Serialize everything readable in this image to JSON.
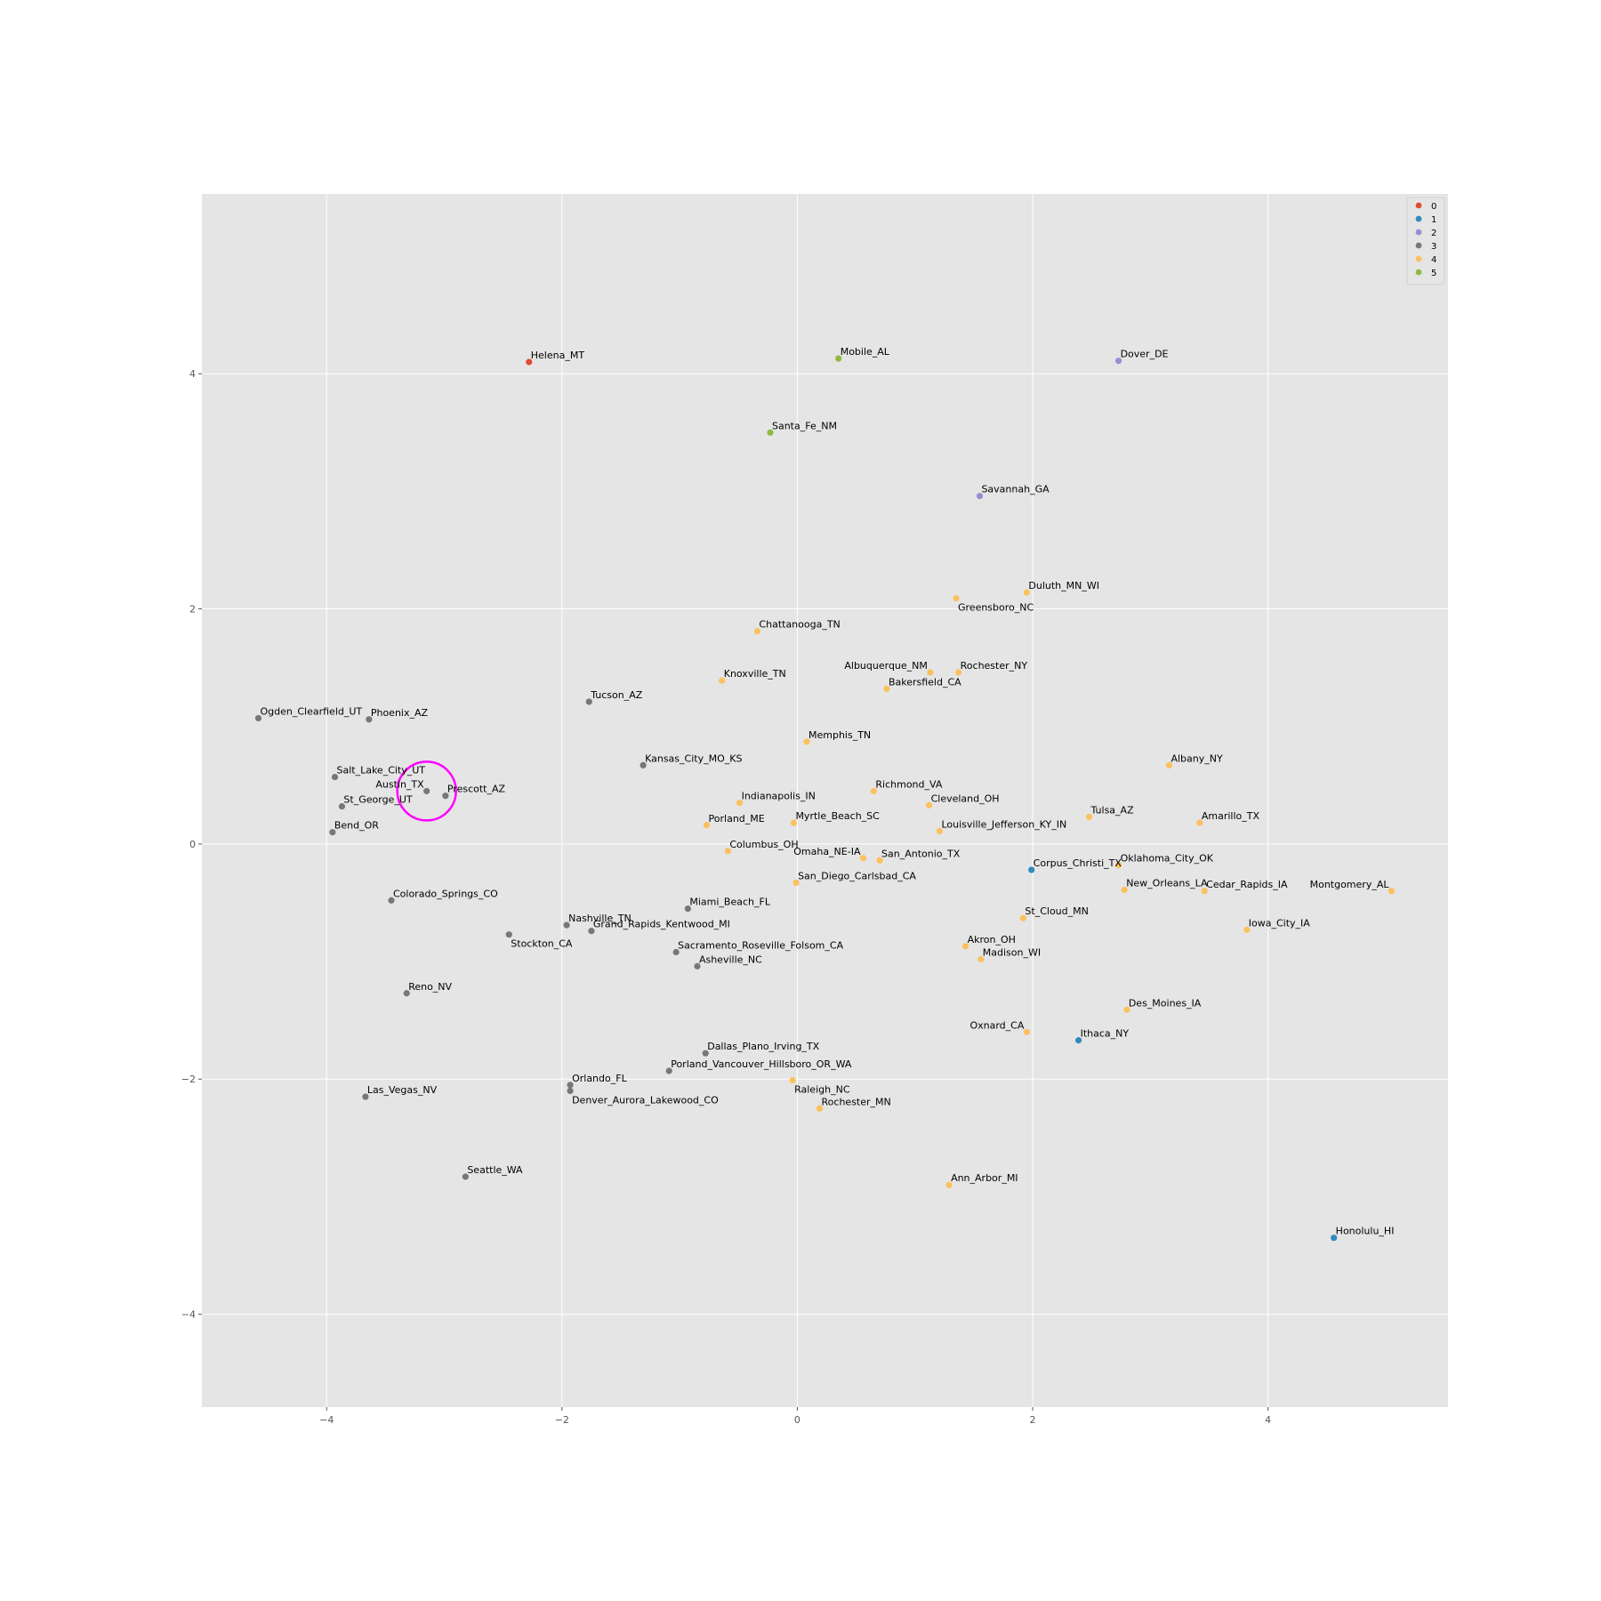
{
  "chart_data": {
    "type": "scatter",
    "title": "",
    "xlabel": "",
    "ylabel": "",
    "xlim": [
      -5.06,
      5.53
    ],
    "ylim": [
      -4.79,
      5.53
    ],
    "xticks": [
      -4,
      -2,
      0,
      2,
      4
    ],
    "yticks": [
      -4,
      -2,
      0,
      2,
      4
    ],
    "grid": true,
    "legend_position": "top-right",
    "clusters": [
      {
        "name": "0",
        "color": "#e24a33"
      },
      {
        "name": "1",
        "color": "#348abd"
      },
      {
        "name": "2",
        "color": "#988ed5"
      },
      {
        "name": "3",
        "color": "#777777"
      },
      {
        "name": "4",
        "color": "#fbc15e"
      },
      {
        "name": "5",
        "color": "#8eba42"
      }
    ],
    "highlight": {
      "x": -3.15,
      "y": 0.45,
      "color": "#ff00ff"
    },
    "points": [
      {
        "label": "Helena_MT",
        "x": -2.28,
        "y": 4.1,
        "cluster": "0",
        "anchor": "right"
      },
      {
        "label": "Mobile_AL",
        "x": 0.35,
        "y": 4.13,
        "cluster": "5",
        "anchor": "right"
      },
      {
        "label": "Dover_DE",
        "x": 2.73,
        "y": 4.11,
        "cluster": "2",
        "anchor": "right"
      },
      {
        "label": "Santa_Fe_NM",
        "x": -0.23,
        "y": 3.5,
        "cluster": "5",
        "anchor": "right"
      },
      {
        "label": "Savannah_GA",
        "x": 1.55,
        "y": 2.96,
        "cluster": "2",
        "anchor": "right"
      },
      {
        "label": "Duluth_MN_WI",
        "x": 1.95,
        "y": 2.14,
        "cluster": "4",
        "anchor": "right"
      },
      {
        "label": "Greensboro_NC",
        "x": 1.35,
        "y": 2.09,
        "cluster": "4",
        "anchor": "right-below"
      },
      {
        "label": "Chattanooga_TN",
        "x": -0.34,
        "y": 1.81,
        "cluster": "4",
        "anchor": "right"
      },
      {
        "label": "Albuquerque_NM",
        "x": 1.13,
        "y": 1.46,
        "cluster": "4",
        "anchor": "left"
      },
      {
        "label": "Rochester_NY",
        "x": 1.37,
        "y": 1.46,
        "cluster": "4",
        "anchor": "right"
      },
      {
        "label": "Knoxville_TN",
        "x": -0.64,
        "y": 1.39,
        "cluster": "4",
        "anchor": "right"
      },
      {
        "label": "Bakersfield_CA",
        "x": 0.76,
        "y": 1.32,
        "cluster": "4",
        "anchor": "right"
      },
      {
        "label": "Tucson_AZ",
        "x": -1.77,
        "y": 1.21,
        "cluster": "3",
        "anchor": "right"
      },
      {
        "label": "Ogden_Clearfield_UT",
        "x": -4.58,
        "y": 1.07,
        "cluster": "3",
        "anchor": "right"
      },
      {
        "label": "Phoenix_AZ",
        "x": -3.64,
        "y": 1.06,
        "cluster": "3",
        "anchor": "right"
      },
      {
        "label": "Memphis_TN",
        "x": 0.08,
        "y": 0.87,
        "cluster": "4",
        "anchor": "right"
      },
      {
        "label": "Kansas_City_MO_KS",
        "x": -1.31,
        "y": 0.67,
        "cluster": "3",
        "anchor": "right"
      },
      {
        "label": "Albany_NY",
        "x": 3.16,
        "y": 0.67,
        "cluster": "4",
        "anchor": "right"
      },
      {
        "label": "Salt_Lake_City_UT",
        "x": -3.93,
        "y": 0.57,
        "cluster": "3",
        "anchor": "right"
      },
      {
        "label": "Austin_TX",
        "x": -3.15,
        "y": 0.45,
        "cluster": "3",
        "anchor": "left"
      },
      {
        "label": "Richmond_VA",
        "x": 0.65,
        "y": 0.45,
        "cluster": "4",
        "anchor": "right"
      },
      {
        "label": "Prescott_AZ",
        "x": -2.99,
        "y": 0.41,
        "cluster": "3",
        "anchor": "right"
      },
      {
        "label": "Indianapolis_IN",
        "x": -0.49,
        "y": 0.35,
        "cluster": "4",
        "anchor": "right"
      },
      {
        "label": "St_George_UT",
        "x": -3.87,
        "y": 0.32,
        "cluster": "3",
        "anchor": "right"
      },
      {
        "label": "Cleveland_OH",
        "x": 1.12,
        "y": 0.33,
        "cluster": "4",
        "anchor": "right"
      },
      {
        "label": "Tulsa_AZ",
        "x": 2.48,
        "y": 0.23,
        "cluster": "4",
        "anchor": "right"
      },
      {
        "label": "Amarillo_TX",
        "x": 3.42,
        "y": 0.18,
        "cluster": "4",
        "anchor": "right"
      },
      {
        "label": "Porland_ME",
        "x": -0.77,
        "y": 0.16,
        "cluster": "4",
        "anchor": "right"
      },
      {
        "label": "Myrtle_Beach_SC",
        "x": -0.03,
        "y": 0.18,
        "cluster": "4",
        "anchor": "right"
      },
      {
        "label": "Louisville_Jefferson_KY_IN",
        "x": 1.21,
        "y": 0.11,
        "cluster": "4",
        "anchor": "right"
      },
      {
        "label": "Bend_OR",
        "x": -3.95,
        "y": 0.1,
        "cluster": "3",
        "anchor": "right"
      },
      {
        "label": "Columbus_OH",
        "x": -0.59,
        "y": -0.06,
        "cluster": "4",
        "anchor": "right"
      },
      {
        "label": "Omaha_NE-IA",
        "x": 0.56,
        "y": -0.12,
        "cluster": "4",
        "anchor": "left"
      },
      {
        "label": "San_Antonio_TX",
        "x": 0.7,
        "y": -0.14,
        "cluster": "4",
        "anchor": "right"
      },
      {
        "label": "Corpus_Christi_TX",
        "x": 1.99,
        "y": -0.22,
        "cluster": "1",
        "anchor": "right"
      },
      {
        "label": "Oklahoma_City_OK",
        "x": 2.73,
        "y": -0.18,
        "cluster": "4",
        "anchor": "right"
      },
      {
        "label": "San_Diego_Carlsbad_CA",
        "x": -0.01,
        "y": -0.33,
        "cluster": "4",
        "anchor": "right"
      },
      {
        "label": "New_Orleans_LA",
        "x": 2.78,
        "y": -0.39,
        "cluster": "4",
        "anchor": "right"
      },
      {
        "label": "Cedar_Rapids_IA",
        "x": 3.46,
        "y": -0.4,
        "cluster": "4",
        "anchor": "right"
      },
      {
        "label": "Montgomery_AL",
        "x": 5.05,
        "y": -0.4,
        "cluster": "4",
        "anchor": "left"
      },
      {
        "label": "Colorado_Springs_CO",
        "x": -3.45,
        "y": -0.48,
        "cluster": "3",
        "anchor": "right"
      },
      {
        "label": "Miami_Beach_FL",
        "x": -0.93,
        "y": -0.55,
        "cluster": "3",
        "anchor": "right"
      },
      {
        "label": "St_Cloud_MN",
        "x": 1.92,
        "y": -0.63,
        "cluster": "4",
        "anchor": "right"
      },
      {
        "label": "Nashville_TN",
        "x": -1.96,
        "y": -0.69,
        "cluster": "3",
        "anchor": "right"
      },
      {
        "label": "Iowa_City_IA",
        "x": 3.82,
        "y": -0.73,
        "cluster": "4",
        "anchor": "right"
      },
      {
        "label": "Grand_Rapids_Kentwood_MI",
        "x": -1.75,
        "y": -0.74,
        "cluster": "3",
        "anchor": "right"
      },
      {
        "label": "Stockton_CA",
        "x": -2.45,
        "y": -0.77,
        "cluster": "3",
        "anchor": "right-below"
      },
      {
        "label": "Akron_OH",
        "x": 1.43,
        "y": -0.87,
        "cluster": "4",
        "anchor": "right"
      },
      {
        "label": "Sacramento_Roseville_Folsom_CA",
        "x": -1.03,
        "y": -0.92,
        "cluster": "3",
        "anchor": "right"
      },
      {
        "label": "Madison_WI",
        "x": 1.56,
        "y": -0.98,
        "cluster": "4",
        "anchor": "right"
      },
      {
        "label": "Asheville_NC",
        "x": -0.85,
        "y": -1.04,
        "cluster": "3",
        "anchor": "right"
      },
      {
        "label": "Reno_NV",
        "x": -3.32,
        "y": -1.27,
        "cluster": "3",
        "anchor": "right"
      },
      {
        "label": "Des_Moines_IA",
        "x": 2.8,
        "y": -1.41,
        "cluster": "4",
        "anchor": "right"
      },
      {
        "label": "Oxnard_CA",
        "x": 1.95,
        "y": -1.6,
        "cluster": "4",
        "anchor": "left"
      },
      {
        "label": "Ithaca_NY",
        "x": 2.39,
        "y": -1.67,
        "cluster": "1",
        "anchor": "right"
      },
      {
        "label": "Dallas_Plano_Irving_TX",
        "x": -0.78,
        "y": -1.78,
        "cluster": "3",
        "anchor": "right"
      },
      {
        "label": "Porland_Vancouver_Hillsboro_OR_WA",
        "x": -1.09,
        "y": -1.93,
        "cluster": "3",
        "anchor": "right"
      },
      {
        "label": "Orlando_FL",
        "x": -1.93,
        "y": -2.05,
        "cluster": "3",
        "anchor": "right"
      },
      {
        "label": "Raleigh_NC",
        "x": -0.04,
        "y": -2.01,
        "cluster": "4",
        "anchor": "right-below"
      },
      {
        "label": "Denver_Aurora_Lakewood_CO",
        "x": -1.93,
        "y": -2.1,
        "cluster": "3",
        "anchor": "right-below"
      },
      {
        "label": "Las_Vegas_NV",
        "x": -3.67,
        "y": -2.15,
        "cluster": "3",
        "anchor": "right"
      },
      {
        "label": "Rochester_MN",
        "x": 0.19,
        "y": -2.25,
        "cluster": "4",
        "anchor": "right"
      },
      {
        "label": "Seattle_WA",
        "x": -2.82,
        "y": -2.83,
        "cluster": "3",
        "anchor": "right"
      },
      {
        "label": "Ann_Arbor_MI",
        "x": 1.29,
        "y": -2.9,
        "cluster": "4",
        "anchor": "right"
      },
      {
        "label": "Honolulu_HI",
        "x": 4.56,
        "y": -3.35,
        "cluster": "1",
        "anchor": "right"
      }
    ]
  }
}
